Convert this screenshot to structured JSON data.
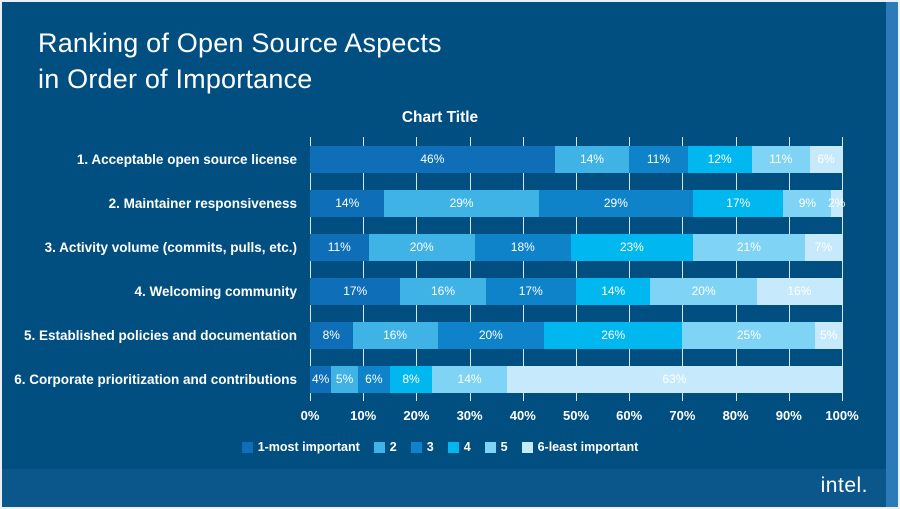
{
  "page": {
    "background": "#004f80",
    "accent_strip_color": "#2d7ab8"
  },
  "header": {
    "title_line1": "Ranking of Open Source Aspects",
    "title_line2": "in Order of Importance"
  },
  "footer": {
    "logo": "intel."
  },
  "chart_data": {
    "type": "bar",
    "orientation": "horizontal-stacked",
    "title": "Chart Title",
    "categories": [
      "1. Acceptable open source license",
      "2. Maintainer responsiveness",
      "3. Activity volume (commits, pulls, etc.)",
      "4. Welcoming community",
      "5. Established policies and documentation",
      "6. Corporate prioritization and contributions"
    ],
    "series": [
      {
        "name": "1-most important",
        "color": "#0e6eb8",
        "values": [
          46,
          14,
          11,
          17,
          8,
          4
        ]
      },
      {
        "name": "2",
        "color": "#3fb2e6",
        "values": [
          14,
          29,
          20,
          16,
          16,
          5
        ]
      },
      {
        "name": "3",
        "color": "#0f83c9",
        "values": [
          11,
          29,
          18,
          17,
          20,
          6
        ]
      },
      {
        "name": "4",
        "color": "#00b8ef",
        "values": [
          12,
          17,
          23,
          14,
          26,
          8
        ]
      },
      {
        "name": "5",
        "color": "#7fd3f4",
        "values": [
          11,
          9,
          21,
          20,
          25,
          14
        ]
      },
      {
        "name": "6-least important",
        "color": "#c6eafb",
        "values": [
          6,
          2,
          7,
          16,
          5,
          63
        ]
      }
    ],
    "x_ticks": [
      "0%",
      "10%",
      "20%",
      "30%",
      "40%",
      "50%",
      "60%",
      "70%",
      "80%",
      "90%",
      "100%"
    ],
    "xlim": [
      0,
      100
    ],
    "value_suffix": "%",
    "grid": true,
    "legend_position": "bottom"
  }
}
